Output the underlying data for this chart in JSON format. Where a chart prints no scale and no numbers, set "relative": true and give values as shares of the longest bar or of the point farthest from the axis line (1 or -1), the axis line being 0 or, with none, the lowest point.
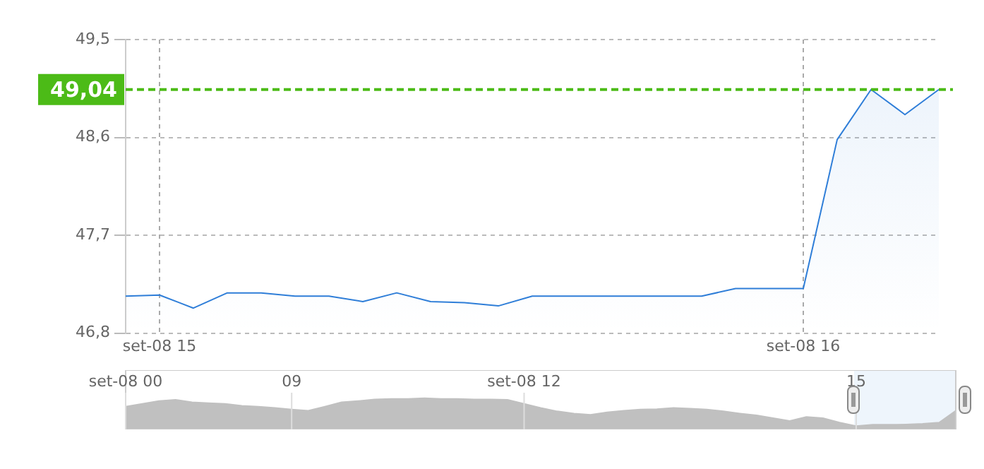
{
  "chart_data": [
    {
      "type": "area",
      "categories": [
        null,
        "set-08 15",
        null,
        null,
        null,
        null,
        null,
        null,
        null,
        null,
        null,
        null,
        null,
        null,
        null,
        null,
        null,
        null,
        null,
        null,
        "set-08 16",
        null,
        null,
        null,
        null
      ],
      "series": [
        {
          "color": "#2f7ed8",
          "values": [
            47.14,
            47.15,
            47.03,
            47.17,
            47.17,
            47.14,
            47.14,
            47.09,
            47.17,
            47.09,
            47.08,
            47.05,
            47.14,
            47.14,
            47.14,
            47.14,
            47.14,
            47.14,
            47.21,
            47.21,
            47.21,
            48.58,
            49.04,
            48.81,
            49.04
          ]
        }
      ],
      "ylim": [
        46.8,
        49.5
      ],
      "yticks": [
        {
          "value": 46.8,
          "label": "46,8"
        },
        {
          "value": 47.7,
          "label": "47,7"
        },
        {
          "value": 48.6,
          "label": "48,6"
        },
        {
          "value": 49.5,
          "label": "49,5"
        }
      ],
      "ref_lines": [
        {
          "axis": "y",
          "value": 49.04,
          "label": "49,04",
          "color": "#4cbb17",
          "line_style": "dashed"
        }
      ],
      "grid": true,
      "legend": false
    },
    {
      "type": "area",
      "relative": true,
      "categories": [
        "set-08 00",
        null,
        null,
        null,
        null,
        null,
        null,
        null,
        null,
        null,
        "09",
        null,
        null,
        null,
        null,
        null,
        null,
        null,
        null,
        null,
        null,
        null,
        null,
        null,
        "set-08 12",
        null,
        null,
        null,
        null,
        null,
        null,
        null,
        null,
        null,
        null,
        null,
        null,
        null,
        null,
        null,
        null,
        null,
        null,
        null,
        "15",
        null,
        null,
        null,
        null,
        null,
        null
      ],
      "series": [
        {
          "color": "#c0c0c0",
          "values": [
            0.73,
            0.82,
            0.91,
            0.95,
            0.87,
            0.84,
            0.82,
            0.76,
            0.73,
            0.69,
            0.64,
            0.6,
            0.73,
            0.87,
            0.91,
            0.96,
            0.98,
            0.98,
            1,
            0.98,
            0.98,
            0.96,
            0.96,
            0.95,
            0.82,
            0.69,
            0.58,
            0.51,
            0.47,
            0.55,
            0.6,
            0.64,
            0.65,
            0.69,
            0.67,
            0.64,
            0.58,
            0.51,
            0.45,
            0.36,
            0.27,
            0.4,
            0.36,
            0.22,
            0.11,
            0.15,
            0.15,
            0.16,
            0.18,
            0.22,
            0.6
          ]
        }
      ],
      "grid": "x",
      "legend": false
    }
  ]
}
